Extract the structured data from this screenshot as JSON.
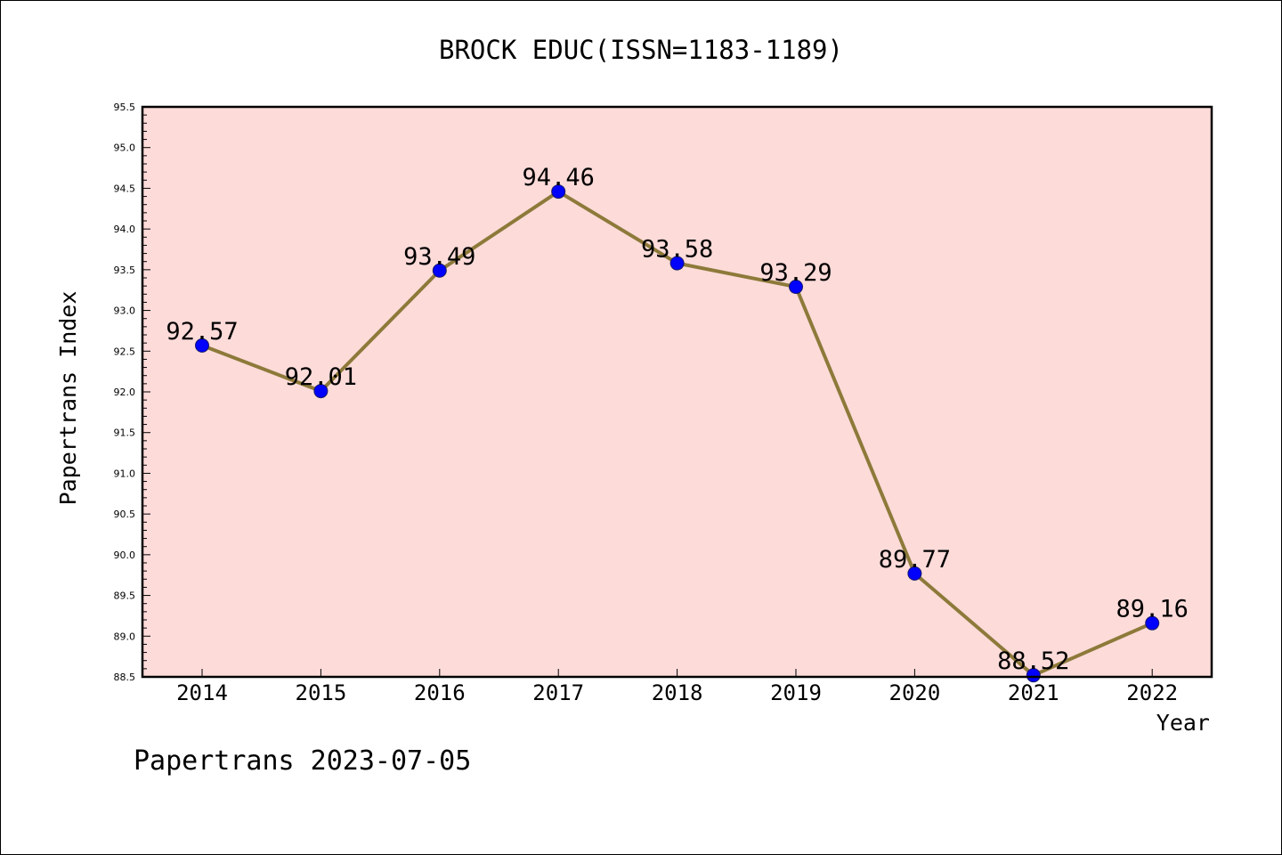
{
  "chart_data": {
    "type": "line",
    "title": "BROCK EDUC(ISSN=1183-1189)",
    "xlabel": "Year",
    "ylabel": "Papertrans Index",
    "categories": [
      "2014",
      "2015",
      "2016",
      "2017",
      "2018",
      "2019",
      "2020",
      "2021",
      "2022"
    ],
    "values": [
      92.57,
      92.01,
      93.49,
      94.46,
      93.58,
      93.29,
      89.77,
      88.52,
      89.16
    ],
    "data_labels": [
      "92.57",
      "92.01",
      "93.49",
      "94.46",
      "93.58",
      "93.29",
      "89.77",
      "88.52",
      "89.16"
    ],
    "y_ticks": [
      "88.5",
      "89.0",
      "89.5",
      "90.0",
      "90.5",
      "91.0",
      "91.5",
      "92.0",
      "92.5",
      "93.0",
      "93.5",
      "94.0",
      "94.5",
      "95.0",
      "95.5"
    ],
    "ylim": [
      88.5,
      95.5
    ],
    "grid": false,
    "colors": {
      "plot_background": "#fddbd9",
      "line": "#8d7a3a",
      "marker": "#0000ff"
    }
  },
  "footer": {
    "watermark": "Papertrans 2023-07-05"
  }
}
